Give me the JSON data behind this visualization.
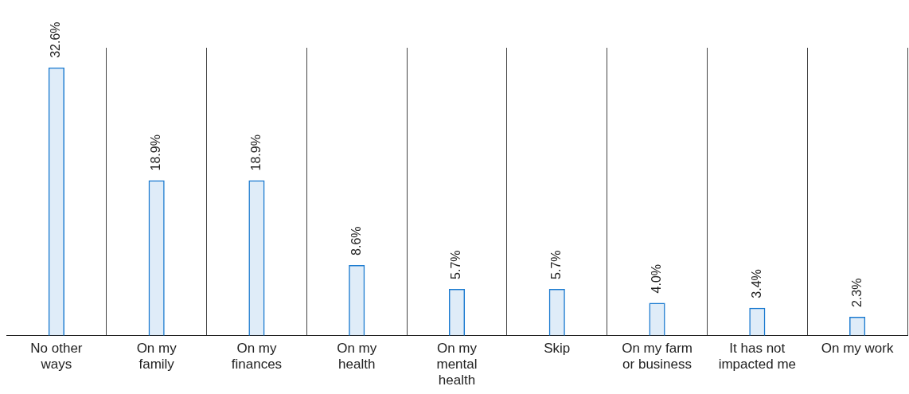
{
  "chart_data": {
    "type": "bar",
    "categories": [
      "No other ways",
      "On my family",
      "On my finances",
      "On my health",
      "On my mental health",
      "Skip",
      "On my farm or business",
      "It has not impacted me",
      "On my work"
    ],
    "values": [
      32.6,
      18.9,
      18.9,
      8.6,
      5.7,
      5.7,
      4.0,
      3.4,
      2.3
    ],
    "value_labels": [
      "32.6%",
      "18.9%",
      "18.9%",
      "8.6%",
      "5.7%",
      "5.7%",
      "4.0%",
      "3.4%",
      "2.3%"
    ],
    "color": "#1a7ad0",
    "grid": "x"
  }
}
